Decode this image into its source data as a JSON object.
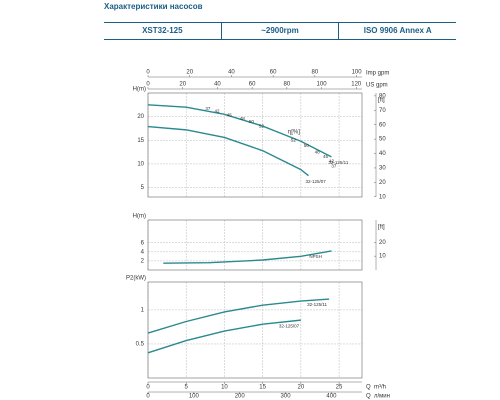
{
  "header": {
    "title": "Характеристики насосов",
    "cells": [
      "XST32-125",
      "~2900rpm",
      "ISO 9906  Annex A"
    ]
  },
  "chart_data": [
    {
      "type": "line",
      "ylabel": "H(m)",
      "y2label": "[ft]",
      "eta_label": "η[%]",
      "xlim": [
        0,
        28
      ],
      "xticks": [
        0,
        5,
        10,
        15,
        20,
        25
      ],
      "ylim": [
        3,
        25
      ],
      "yticks": [
        5,
        10,
        15,
        20
      ],
      "y2lim": [
        9.84,
        82
      ],
      "y2ticks": [
        10,
        20,
        30,
        40,
        50,
        60,
        70,
        80
      ],
      "grid": true,
      "top_axes": [
        {
          "label": "Imp gpm",
          "lim": [
            0,
            102.6
          ],
          "ticks": [
            0,
            20,
            40,
            60,
            80,
            100
          ]
        },
        {
          "label": "US gpm",
          "lim": [
            0,
            123.3
          ],
          "ticks": [
            0,
            20,
            40,
            60,
            80,
            100,
            120
          ]
        }
      ],
      "series": [
        {
          "name": "32-125/11",
          "color": "#2a8a8e",
          "x": [
            0,
            5,
            10,
            15,
            20,
            24
          ],
          "values": [
            22.5,
            22.0,
            20.5,
            18,
            14.8,
            11.5
          ]
        },
        {
          "name": "32-125/07",
          "color": "#2a8a8e",
          "x": [
            0,
            5,
            10,
            15,
            20,
            21
          ],
          "values": [
            17.9,
            17.2,
            15.6,
            12.8,
            8.8,
            7.5
          ]
        }
      ],
      "annotations": [
        {
          "text": "37",
          "x": 7.5,
          "y": 21.7
        },
        {
          "text": "42",
          "x": 8.7,
          "y": 21.1
        },
        {
          "text": "45",
          "x": 10.3,
          "y": 20.3
        },
        {
          "text": "48",
          "x": 12,
          "y": 19.5
        },
        {
          "text": "50",
          "x": 13.2,
          "y": 18.9
        },
        {
          "text": "52",
          "x": 14.5,
          "y": 18
        },
        {
          "text": "52",
          "x": 18.7,
          "y": 15
        },
        {
          "text": "50",
          "x": 20.4,
          "y": 13.8
        },
        {
          "text": "48",
          "x": 21.8,
          "y": 12.5
        },
        {
          "text": "45",
          "x": 22.9,
          "y": 11.5
        },
        {
          "text": "42",
          "x": 23.7,
          "y": 10.5
        },
        {
          "text": "37",
          "x": 24,
          "y": 9.5
        }
      ]
    },
    {
      "type": "line",
      "ylabel": "H(m)",
      "y2label": "[ft]",
      "xlim": [
        0,
        28
      ],
      "xticks": [
        0,
        5,
        10,
        15,
        20,
        25
      ],
      "ylim": [
        0,
        11
      ],
      "yticks": [
        2,
        4,
        6
      ],
      "y2lim": [
        0,
        36.1
      ],
      "y2ticks": [
        10,
        20
      ],
      "grid": true,
      "series": [
        {
          "name": "NPSH",
          "color": "#2a8a8e",
          "x": [
            2,
            8,
            15,
            20,
            24
          ],
          "values": [
            1.5,
            1.6,
            2.2,
            3.0,
            4.2
          ]
        }
      ]
    },
    {
      "type": "line",
      "ylabel": "P2(kW)",
      "xlim": [
        0,
        28
      ],
      "xticks": [
        0,
        5,
        10,
        15,
        20,
        25
      ],
      "ylim": [
        0,
        1.41
      ],
      "yticks": [
        0.5,
        1
      ],
      "grid": true,
      "xvar": "Q",
      "xlabel": "m³/h",
      "bottom_axes": [
        {
          "var": "Q",
          "label": "л/мин",
          "lim": [
            0,
            466.7
          ],
          "ticks": [
            0,
            100,
            200,
            300,
            400
          ]
        }
      ],
      "series": [
        {
          "name": "32-125/11",
          "color": "#2a8a8e",
          "x": [
            0,
            5,
            10,
            15,
            20,
            23.7
          ],
          "values": [
            0.66,
            0.83,
            0.97,
            1.07,
            1.13,
            1.16
          ]
        },
        {
          "name": "32-125/07",
          "color": "#2a8a8e",
          "x": [
            0,
            5,
            10,
            15,
            20
          ],
          "values": [
            0.37,
            0.55,
            0.69,
            0.79,
            0.85
          ]
        }
      ]
    }
  ]
}
